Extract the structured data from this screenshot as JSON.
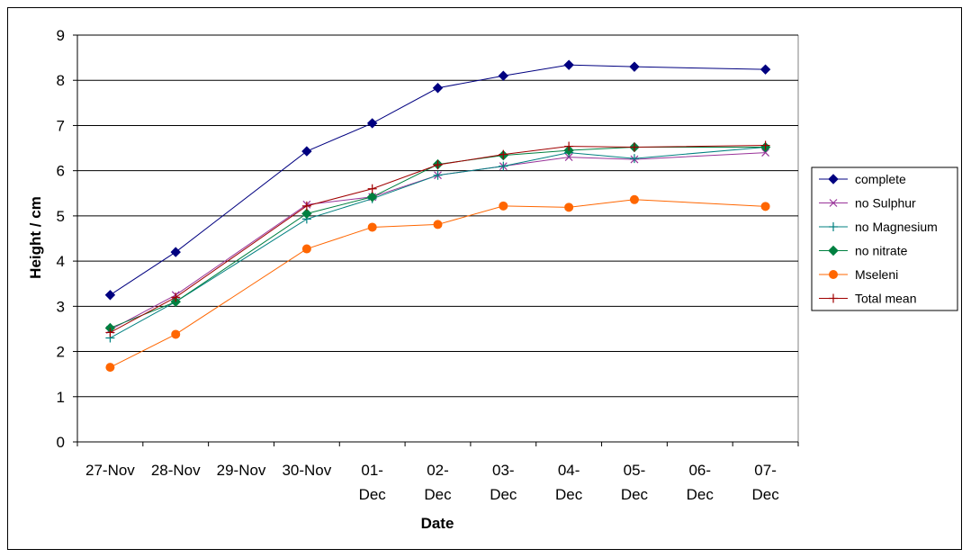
{
  "chart_data": {
    "type": "line",
    "title": "",
    "xlabel": "Date",
    "ylabel": "Height / cm",
    "ylim": [
      0,
      9
    ],
    "yticks": [
      0,
      1,
      2,
      3,
      4,
      5,
      6,
      7,
      8,
      9
    ],
    "grid": "horizontal major gridlines",
    "legend_position": "right",
    "categories": [
      [
        "27-Nov"
      ],
      [
        "28-Nov"
      ],
      [
        "29-Nov"
      ],
      [
        "30-Nov"
      ],
      [
        "01-",
        "Dec"
      ],
      [
        "02-",
        "Dec"
      ],
      [
        "03-",
        "Dec"
      ],
      [
        "04-",
        "Dec"
      ],
      [
        "05-",
        "Dec"
      ],
      [
        "06-",
        "Dec"
      ],
      [
        "07-",
        "Dec"
      ]
    ],
    "series": [
      {
        "name": "complete",
        "color": "#000080",
        "marker": "diamond",
        "x": [
          0,
          1,
          3,
          4,
          5,
          6,
          7,
          8,
          10
        ],
        "values": [
          3.25,
          4.2,
          6.43,
          7.05,
          7.83,
          8.1,
          8.34,
          8.3,
          8.24
        ]
      },
      {
        "name": " no Sulphur",
        "color": "#993399",
        "marker": "x",
        "x": [
          0,
          1,
          3,
          4,
          5,
          6,
          7,
          8,
          10
        ],
        "values": [
          2.48,
          3.25,
          5.25,
          5.42,
          5.9,
          6.1,
          6.3,
          6.25,
          6.4
        ]
      },
      {
        "name": "no Magnesium",
        "color": "#008080",
        "marker": "plus",
        "x": [
          0,
          1,
          3,
          4,
          5,
          6,
          7,
          8,
          10
        ],
        "values": [
          2.3,
          3.1,
          4.93,
          5.38,
          5.9,
          6.1,
          6.4,
          6.27,
          6.52
        ]
      },
      {
        "name": "no nitrate",
        "color": "#008040",
        "marker": "diamond",
        "x": [
          0,
          1,
          3,
          4,
          5,
          6,
          7,
          8,
          10
        ],
        "values": [
          2.52,
          3.1,
          5.05,
          5.42,
          6.14,
          6.34,
          6.45,
          6.52,
          6.52
        ]
      },
      {
        "name": "Mseleni",
        "color": "#FF6600",
        "marker": "circle",
        "x": [
          0,
          1,
          3,
          4,
          5,
          6,
          7,
          8,
          10
        ],
        "values": [
          1.65,
          2.38,
          4.27,
          4.75,
          4.81,
          5.22,
          5.19,
          5.36,
          5.21
        ]
      },
      {
        "name": "Total mean",
        "color": "#A00000",
        "marker": "plus",
        "x": [
          0,
          1,
          3,
          4,
          5,
          6,
          7,
          8,
          10
        ],
        "values": [
          2.42,
          3.2,
          5.22,
          5.6,
          6.13,
          6.36,
          6.54,
          6.52,
          6.56
        ]
      }
    ]
  }
}
